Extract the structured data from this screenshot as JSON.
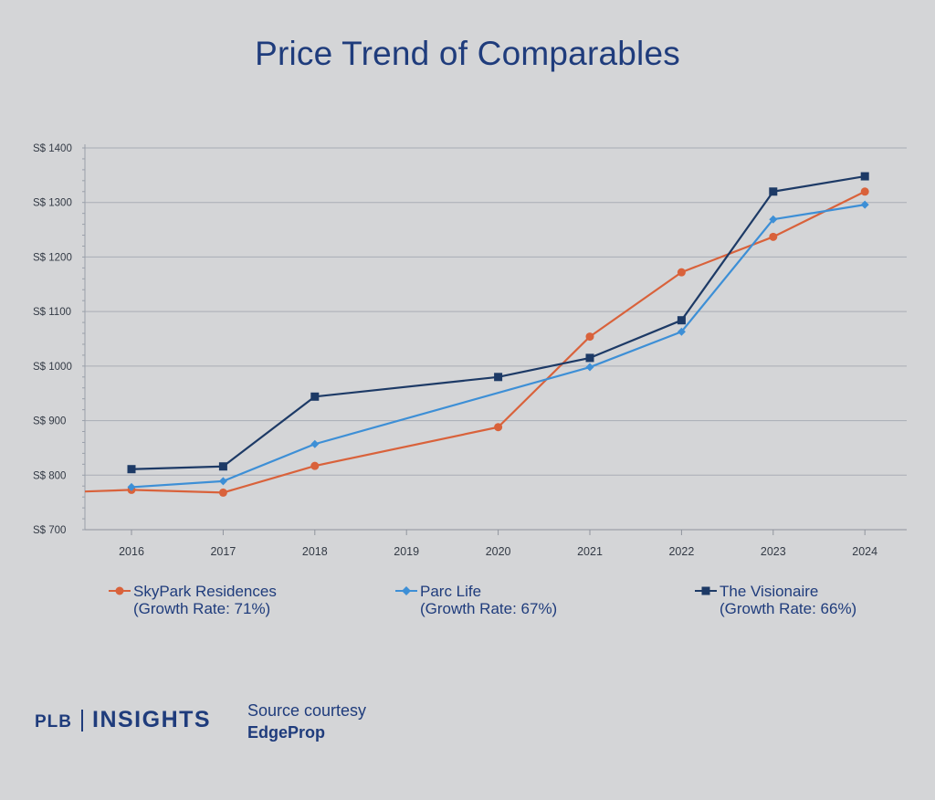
{
  "chart_data": {
    "type": "line",
    "title": "Price Trend of Comparables",
    "x": [
      "2016",
      "2017",
      "2018",
      "2019",
      "2020",
      "2021",
      "2022",
      "2023",
      "2024"
    ],
    "y_tick_labels": [
      "S$ 700",
      "S$ 800",
      "S$ 900",
      "S$ 1000",
      "S$ 1100",
      "S$ 1200",
      "S$ 1300",
      "S$ 1400"
    ],
    "ylim": [
      700,
      1400
    ],
    "grid": true,
    "legend_position": "bottom",
    "series": [
      {
        "name": "SkyPark Residences",
        "note": "(Growth Rate: 71%)",
        "color": "#d9623b",
        "marker": "circle",
        "leading_value": 770,
        "values": [
          773,
          768,
          817,
          null,
          888,
          1054,
          1172,
          1237,
          1320
        ]
      },
      {
        "name": "Parc Life",
        "note": "(Growth Rate: 67%)",
        "color": "#3d8fd6",
        "marker": "diamond",
        "values": [
          778,
          789,
          857,
          null,
          null,
          998,
          1063,
          1269,
          1296
        ]
      },
      {
        "name": "The Visionaire",
        "note": "(Growth Rate: 66%)",
        "color": "#1d3a66",
        "marker": "square",
        "values": [
          811,
          816,
          944,
          null,
          980,
          1015,
          1084,
          1320,
          1348
        ]
      }
    ]
  },
  "footer": {
    "brand_left": "PLB",
    "brand_right": "INSIGHTS",
    "source_line1": "Source courtesy",
    "source_line2": "EdgeProp"
  }
}
